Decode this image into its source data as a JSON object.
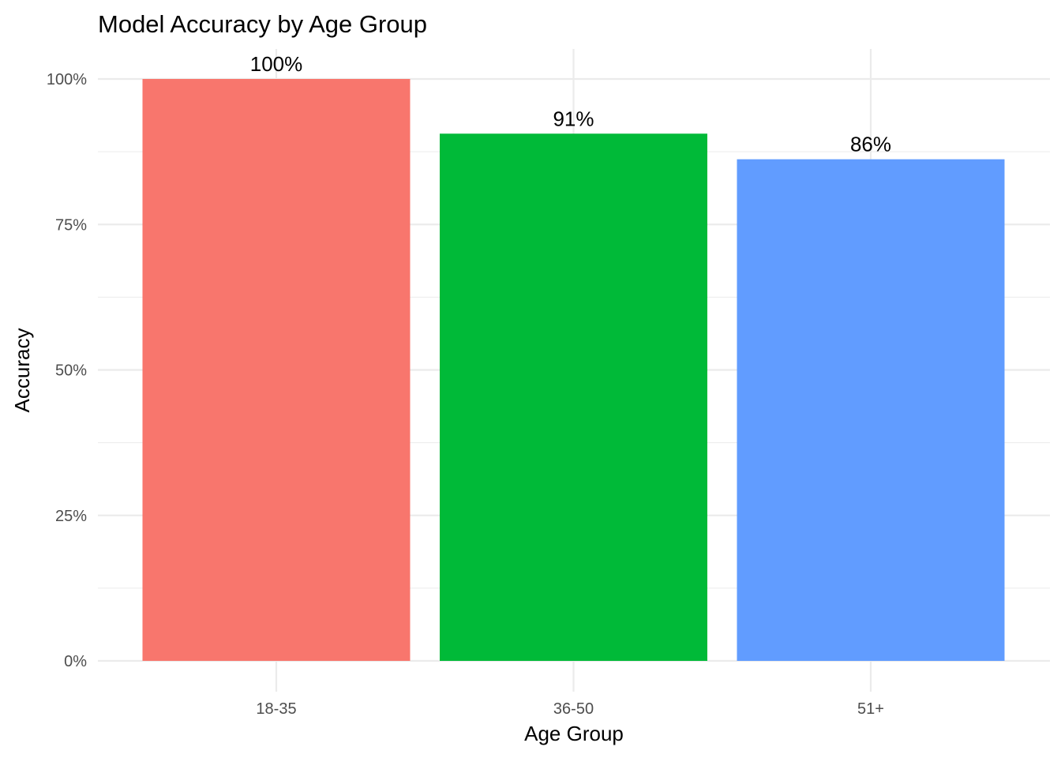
{
  "chart_data": {
    "type": "bar",
    "title": "Model Accuracy by Age Group",
    "xlabel": "Age Group",
    "ylabel": "Accuracy",
    "categories": [
      "18-35",
      "36-50",
      "51+"
    ],
    "values": [
      1.0,
      0.906,
      0.862
    ],
    "data_labels": [
      "100%",
      "91%",
      "86%"
    ],
    "colors": [
      "#F8766D",
      "#00BA38",
      "#619CFF"
    ],
    "ylim": [
      0,
      1.05
    ],
    "y_ticks": [
      0,
      0.25,
      0.5,
      0.75,
      1.0
    ],
    "y_tick_labels": [
      "0%",
      "25%",
      "50%",
      "75%",
      "100%"
    ],
    "y_minor_ticks": [
      0.125,
      0.375,
      0.625,
      0.875
    ],
    "grid": true,
    "legend": "none"
  }
}
